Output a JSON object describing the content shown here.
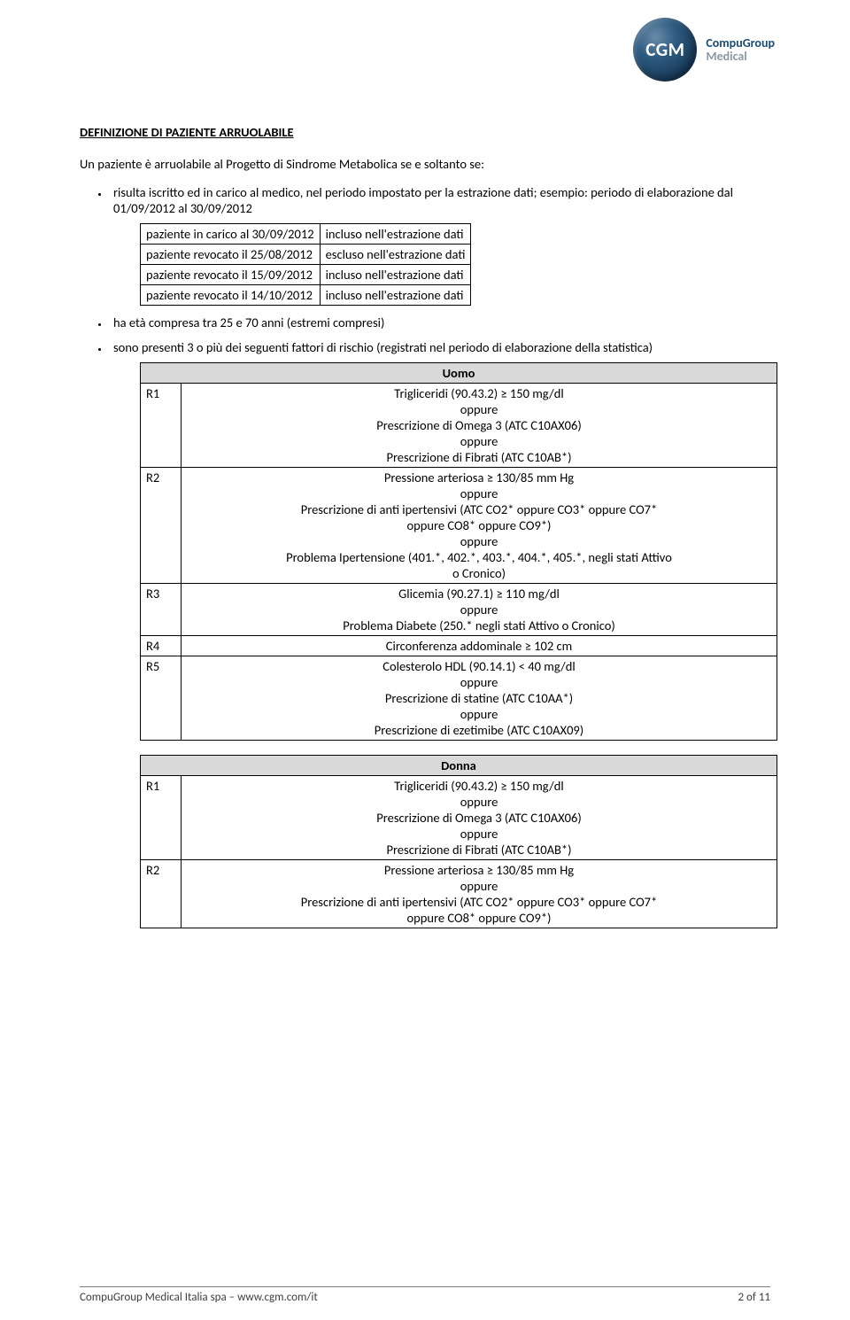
{
  "logo": {
    "badge_text": "CGM",
    "line1": "CompuGroup",
    "line2": "Medical",
    "badge_bg_outer": "#0d2840",
    "badge_bg_inner": "#2d5a80",
    "text_color1": "#1a4d73",
    "text_color2": "#8a9aa5"
  },
  "heading": "DEFINIZIONE DI PAZIENTE ARRUOLABILE",
  "intro": "Un paziente è arruolabile al Progetto di Sindrome Metabolica se e soltanto se:",
  "bullet1_text": "risulta iscritto ed in carico al medico, nel periodo impostato per la estrazione dati; esempio: periodo di elaborazione dal 01/09/2012 al 30/09/2012",
  "period_table": {
    "rows": [
      [
        "paziente in carico al 30/09/2012",
        "incluso nell'estrazione dati"
      ],
      [
        "paziente revocato il 25/08/2012",
        "escluso nell'estrazione dati"
      ],
      [
        "paziente revocato il 15/09/2012",
        "incluso nell'estrazione dati"
      ],
      [
        "paziente revocato il 14/10/2012",
        "incluso nell'estrazione dati"
      ]
    ]
  },
  "bullet2_text": "ha età compresa tra 25 e 70 anni (estremi compresi)",
  "bullet3_text": "sono presenti 3 o più dei seguenti fattori di rischio (registrati nel periodo di elaborazione della statistica)",
  "uomo_table": {
    "header": "Uomo",
    "rows": [
      {
        "label": "R1",
        "desc": "Trigliceridi (90.43.2) ≥ 150 mg/dl\noppure\nPrescrizione di Omega 3 (ATC C10AX06)\noppure\nPrescrizione di Fibrati (ATC C10AB*)"
      },
      {
        "label": "R2",
        "desc": "Pressione arteriosa ≥ 130/85 mm Hg\noppure\nPrescrizione di anti ipertensivi (ATC CO2* oppure CO3* oppure CO7*\noppure CO8* oppure CO9*)\noppure\nProblema Ipertensione (401.*, 402.*, 403.*, 404.*, 405.*, negli stati Attivo\no Cronico)"
      },
      {
        "label": "R3",
        "desc": "Glicemia (90.27.1) ≥ 110 mg/dl\noppure\nProblema Diabete (250.* negli stati Attivo o Cronico)"
      },
      {
        "label": "R4",
        "desc": "Circonferenza addominale ≥ 102 cm"
      },
      {
        "label": "R5",
        "desc": "Colesterolo HDL (90.14.1) < 40 mg/dl\noppure\nPrescrizione di statine (ATC C10AA*)\noppure\nPrescrizione di ezetimibe (ATC C10AX09)"
      }
    ]
  },
  "donna_table": {
    "header": "Donna",
    "rows": [
      {
        "label": "R1",
        "desc": "Trigliceridi (90.43.2) ≥ 150 mg/dl\noppure\nPrescrizione di Omega 3 (ATC C10AX06)\noppure\nPrescrizione di Fibrati (ATC C10AB*)"
      },
      {
        "label": "R2",
        "desc": "Pressione arteriosa ≥ 130/85 mm Hg\noppure\nPrescrizione di anti ipertensivi (ATC CO2* oppure CO3* oppure CO7*\noppure CO8* oppure CO9*)"
      }
    ]
  },
  "footer": {
    "left": "CompuGroup Medical Italia spa – www.cgm.com/it",
    "right": "2 of 11"
  },
  "colors": {
    "table_header_bg": "#d9d9d9",
    "border": "#000000",
    "footer_border": "#7a7a7a",
    "text": "#000000"
  },
  "fonts": {
    "body_family": "Calibri",
    "body_size_pt": 11,
    "heading_weight": 700
  }
}
